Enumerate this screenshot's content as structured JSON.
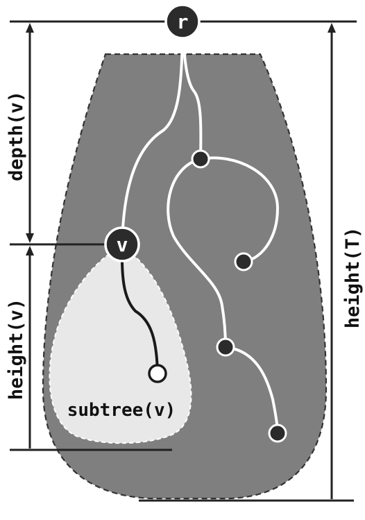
{
  "labels": {
    "root": "r",
    "vertex": "v",
    "depth": "depth(v)",
    "height_v": "height(v)",
    "height_t": "height(T)",
    "subtree": "subtree(v)"
  },
  "colors": {
    "tree_region": "#7f7f7f",
    "subtree_region": "#e8e8e8",
    "edges_tree": "#ffffff",
    "edges_subtree": "#1a1a1a",
    "node_dark": "#2b2b2b",
    "measure_lines": "#222222"
  }
}
